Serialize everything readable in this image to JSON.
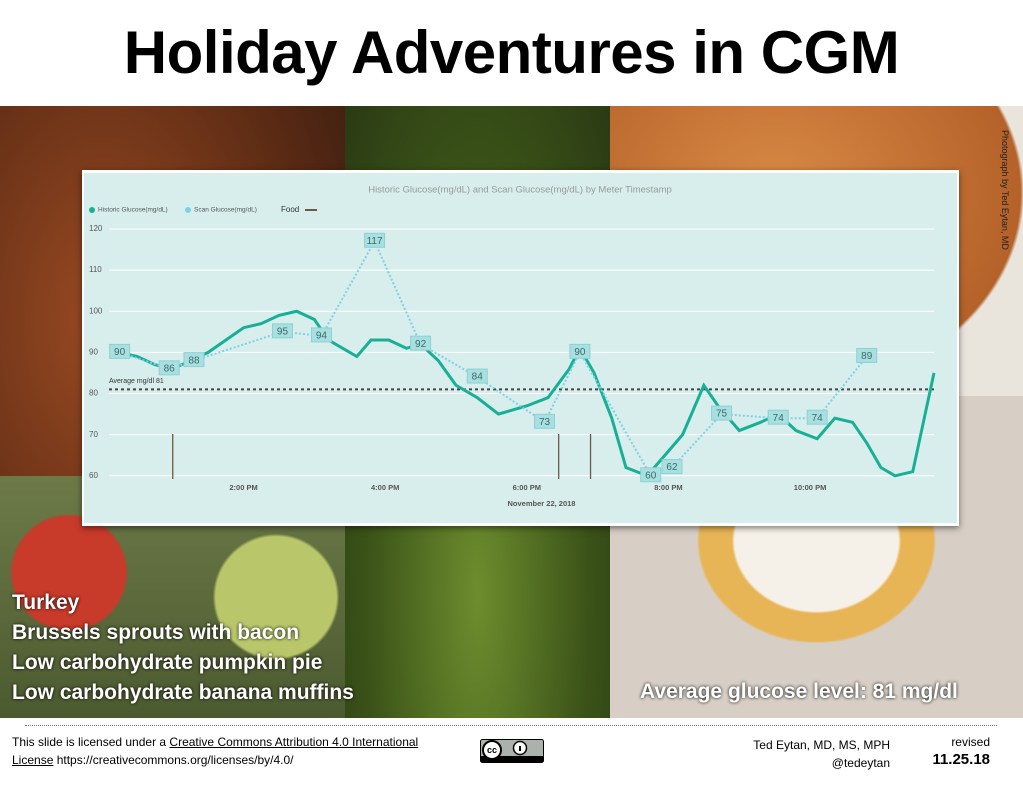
{
  "slide": {
    "title": "Holiday Adventures in CGM",
    "photo_credit": "Photograph by Ted Eytan, MD",
    "foods": [
      "Turkey",
      "Brussels sprouts with bacon",
      "Low carbohydrate pumpkin pie",
      "Low carbohydrate banana muffins"
    ],
    "summary": "Average glucose level: 81 mg/dl",
    "license_prefix": "This slide is licensed under a ",
    "license_link": "Creative Commons Attribution 4.0 International License",
    "license_url": " https://creativecommons.org/licenses/by/4.0/",
    "author": "Ted Eytan, MD, MS, MPH",
    "handle": "@tedeytan",
    "revised_label": "revised",
    "revised_date": "11.25.18"
  },
  "chart_data": {
    "type": "line",
    "title": "Historic Glucose(mg/dL) and Scan Glucose(mg/dL) by Meter Timestamp",
    "x_label": "November 22, 2018",
    "xlim": [
      12.1,
      23.75
    ],
    "xticks": [
      {
        "value": 14,
        "label": "2:00 PM"
      },
      {
        "value": 16,
        "label": "4:00 PM"
      },
      {
        "value": 18,
        "label": "6:00 PM"
      },
      {
        "value": 20,
        "label": "8:00 PM"
      },
      {
        "value": 22,
        "label": "10:00 PM"
      }
    ],
    "ylim": [
      58,
      120
    ],
    "yticks": [
      60,
      70,
      80,
      90,
      100,
      110,
      120
    ],
    "grid": true,
    "series": [
      {
        "name": "Historic Glucose(mg/dL)",
        "color": "#17b097",
        "style": "solid",
        "data_labels": false,
        "x": [
          12.23,
          12.5,
          12.75,
          13.0,
          13.5,
          14.0,
          14.25,
          14.5,
          14.75,
          15.0,
          15.2,
          15.4,
          15.6,
          15.8,
          16.05,
          16.3,
          16.5,
          16.75,
          17.0,
          17.3,
          17.6,
          18.0,
          18.3,
          18.6,
          18.75,
          18.95,
          19.2,
          19.4,
          19.7,
          19.95,
          20.2,
          20.5,
          20.7,
          21.0,
          21.3,
          21.55,
          21.8,
          22.1,
          22.35,
          22.6,
          22.8,
          23.0,
          23.2,
          23.45,
          23.75
        ],
        "values": [
          90,
          89,
          87,
          86,
          90,
          96,
          97,
          99,
          100,
          98,
          93,
          91,
          89,
          93,
          93,
          91,
          92,
          88,
          82,
          79,
          75,
          77,
          79,
          86,
          91,
          85,
          74,
          62,
          60,
          65,
          70,
          82,
          77,
          71,
          73,
          75,
          71,
          69,
          74,
          73,
          68,
          62,
          60,
          61,
          85
        ]
      },
      {
        "name": "Scan Glucose(mg/dL)",
        "color": "#7fd0e6",
        "style": "dotted",
        "data_labels": true,
        "x": [
          12.25,
          12.95,
          13.3,
          14.55,
          15.1,
          15.85,
          16.5,
          17.3,
          18.25,
          18.75,
          19.75,
          20.05,
          20.75,
          21.55,
          22.1,
          22.8
        ],
        "values": [
          90,
          86,
          88,
          95,
          94,
          117,
          92,
          84,
          73,
          90,
          60,
          62,
          75,
          74,
          74,
          89
        ]
      }
    ],
    "reference_line": {
      "value": 81,
      "label": "Average mg/dl 81"
    },
    "events": {
      "name": "Food",
      "color": "#6b5a3e",
      "x": [
        13.0,
        18.45,
        18.9
      ]
    }
  }
}
